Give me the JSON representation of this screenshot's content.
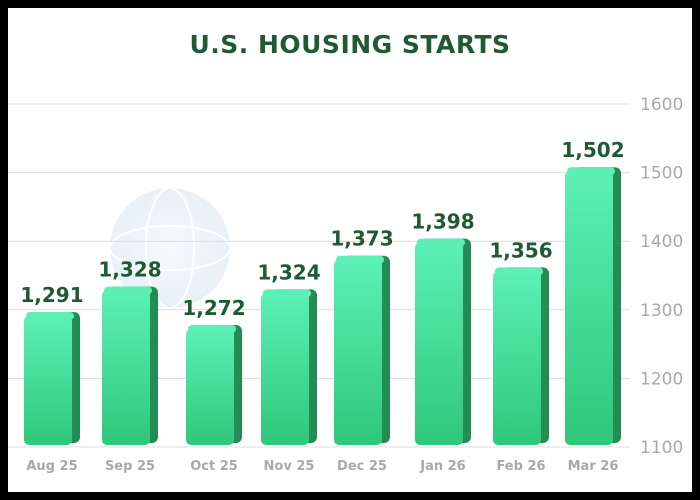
{
  "colors": {
    "title": "#1f5a33",
    "bar_top": "#5cf0b6",
    "bar_bottom": "#2fc77a",
    "value_label": "#1f5a33",
    "axis_text": "#a9a9a9",
    "grid": "#dcdcdc"
  },
  "chart_data": {
    "type": "bar",
    "title": "U.S. HOUSING STARTS",
    "categories": [
      "Aug 25",
      "Sep 25",
      "Oct 25",
      "Nov 25",
      "Dec 25",
      "Jan 26",
      "Feb 26",
      "Mar 26"
    ],
    "values": [
      1291,
      1328,
      1272,
      1324,
      1373,
      1398,
      1356,
      1502
    ],
    "data_labels": [
      "1,291",
      "1,328",
      "1,272",
      "1,324",
      "1,373",
      "1,398",
      "1,356",
      "1,502"
    ],
    "y_ticks": [
      "1100",
      "1200",
      "1300",
      "1400",
      "1500",
      "1600"
    ],
    "ylim": [
      1100,
      1600
    ],
    "y_axis_side": "right",
    "grid": true,
    "xlabel": "",
    "ylabel": ""
  }
}
